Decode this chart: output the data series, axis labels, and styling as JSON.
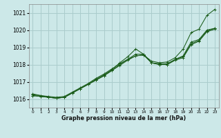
{
  "title": "Graphe pression niveau de la mer (hPa)",
  "bg_color": "#cce8e8",
  "grid_color": "#aacccc",
  "line_color": "#1a5c1a",
  "xlim": [
    -0.5,
    23.5
  ],
  "ylim": [
    1015.5,
    1021.5
  ],
  "yticks": [
    1016,
    1017,
    1018,
    1019,
    1020,
    1021
  ],
  "xticks": [
    0,
    1,
    2,
    3,
    4,
    5,
    6,
    7,
    8,
    9,
    10,
    11,
    12,
    13,
    14,
    15,
    16,
    17,
    18,
    19,
    20,
    21,
    22,
    23
  ],
  "series": [
    {
      "x": [
        0,
        1,
        2,
        3,
        4,
        5,
        6,
        7,
        8,
        9,
        10,
        11,
        12,
        13,
        14,
        15,
        16,
        17,
        18,
        19,
        20,
        21,
        22,
        23
      ],
      "y": [
        1016.3,
        1016.2,
        1016.15,
        1016.1,
        1016.15,
        1016.4,
        1016.65,
        1016.9,
        1017.2,
        1017.45,
        1017.75,
        1018.05,
        1018.3,
        1018.5,
        1018.55,
        1018.2,
        1018.1,
        1018.15,
        1018.4,
        1018.9,
        1019.85,
        1020.05,
        1020.85,
        1021.2
      ]
    },
    {
      "x": [
        0,
        1,
        2,
        3,
        4,
        5,
        6,
        7,
        8,
        9,
        10,
        11,
        12,
        13,
        14,
        15,
        16,
        17,
        18,
        19,
        20,
        21,
        22,
        23
      ],
      "y": [
        1016.25,
        1016.2,
        1016.1,
        1016.05,
        1016.1,
        1016.35,
        1016.6,
        1016.85,
        1017.15,
        1017.4,
        1017.7,
        1018.1,
        1018.45,
        1018.9,
        1018.6,
        1018.1,
        1018.05,
        1018.05,
        1018.3,
        1018.45,
        1019.2,
        1019.4,
        1019.95,
        1020.1
      ]
    },
    {
      "x": [
        0,
        1,
        2,
        3,
        4,
        5,
        6,
        7,
        8,
        9,
        10,
        11,
        12,
        13,
        14,
        15,
        16,
        17,
        18,
        19,
        20,
        21,
        22,
        23
      ],
      "y": [
        1016.2,
        1016.15,
        1016.1,
        1016.05,
        1016.1,
        1016.35,
        1016.6,
        1016.85,
        1017.1,
        1017.35,
        1017.65,
        1018.0,
        1018.3,
        1018.6,
        1018.6,
        1018.1,
        1018.0,
        1018.0,
        1018.3,
        1018.5,
        1019.3,
        1019.45,
        1020.0,
        1020.1
      ]
    },
    {
      "x": [
        0,
        1,
        2,
        3,
        4,
        5,
        6,
        7,
        8,
        9,
        10,
        11,
        12,
        13,
        14,
        15,
        16,
        17,
        18,
        19,
        20,
        21,
        22,
        23
      ],
      "y": [
        1016.2,
        1016.15,
        1016.1,
        1016.05,
        1016.1,
        1016.35,
        1016.6,
        1016.85,
        1017.1,
        1017.35,
        1017.65,
        1017.95,
        1018.25,
        1018.5,
        1018.55,
        1018.1,
        1018.0,
        1018.0,
        1018.25,
        1018.4,
        1019.15,
        1019.35,
        1019.9,
        1020.05
      ]
    }
  ]
}
